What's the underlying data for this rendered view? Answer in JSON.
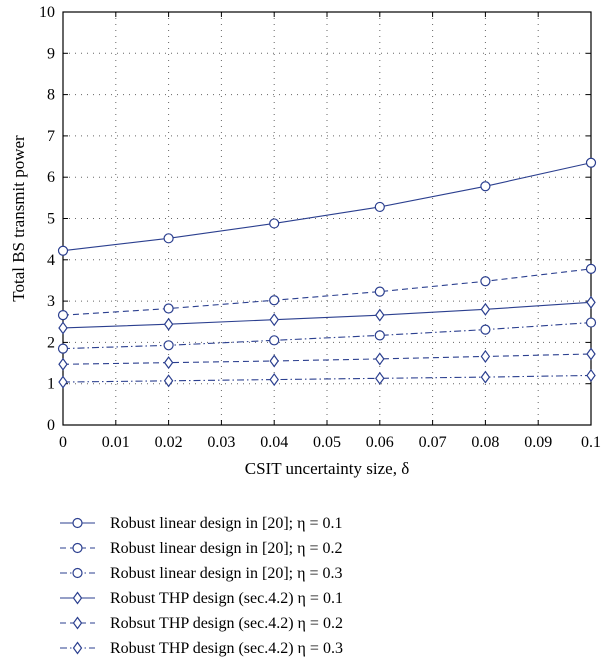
{
  "chart_data": {
    "type": "line",
    "title": "",
    "xlabel": "CSIT uncertainty size, δ",
    "ylabel": "Total BS transmit power",
    "xlim": [
      0,
      0.1
    ],
    "ylim": [
      0,
      10
    ],
    "x_ticks": [
      "0",
      "0.01",
      "0.02",
      "0.03",
      "0.04",
      "0.05",
      "0.06",
      "0.07",
      "0.08",
      "0.09",
      "0.1"
    ],
    "y_ticks": [
      "0",
      "1",
      "2",
      "3",
      "4",
      "5",
      "6",
      "7",
      "8",
      "9",
      "10"
    ],
    "grid": true,
    "legend_position": "below",
    "series_color": "#2b3f8f",
    "x": [
      0,
      0.02,
      0.04,
      0.06,
      0.08,
      0.1
    ],
    "series": [
      {
        "name": "Robust linear design in [20]; η = 0.1",
        "values": [
          4.22,
          4.52,
          4.88,
          5.28,
          5.78,
          6.35
        ],
        "line_style": "solid",
        "marker": "circle"
      },
      {
        "name": "Robust linear design in [20]; η = 0.2",
        "values": [
          2.66,
          2.82,
          3.02,
          3.23,
          3.48,
          3.78
        ],
        "line_style": "dashed",
        "marker": "circle"
      },
      {
        "name": "Robust linear design in [20]; η = 0.3",
        "values": [
          1.85,
          1.93,
          2.05,
          2.17,
          2.31,
          2.48
        ],
        "line_style": "dashdot",
        "marker": "circle"
      },
      {
        "name": "Robust THP design (sec.4.2) η = 0.1",
        "values": [
          2.35,
          2.44,
          2.55,
          2.66,
          2.8,
          2.97
        ],
        "line_style": "solid",
        "marker": "diamond"
      },
      {
        "name": "Robsut THP design (sec.4.2) η = 0.2",
        "values": [
          1.47,
          1.51,
          1.55,
          1.6,
          1.66,
          1.72
        ],
        "line_style": "dashed",
        "marker": "diamond"
      },
      {
        "name": "Robust THP design (sec.4.2) η = 0.3",
        "values": [
          1.04,
          1.07,
          1.1,
          1.13,
          1.16,
          1.2
        ],
        "line_style": "dashdot",
        "marker": "diamond"
      }
    ]
  }
}
